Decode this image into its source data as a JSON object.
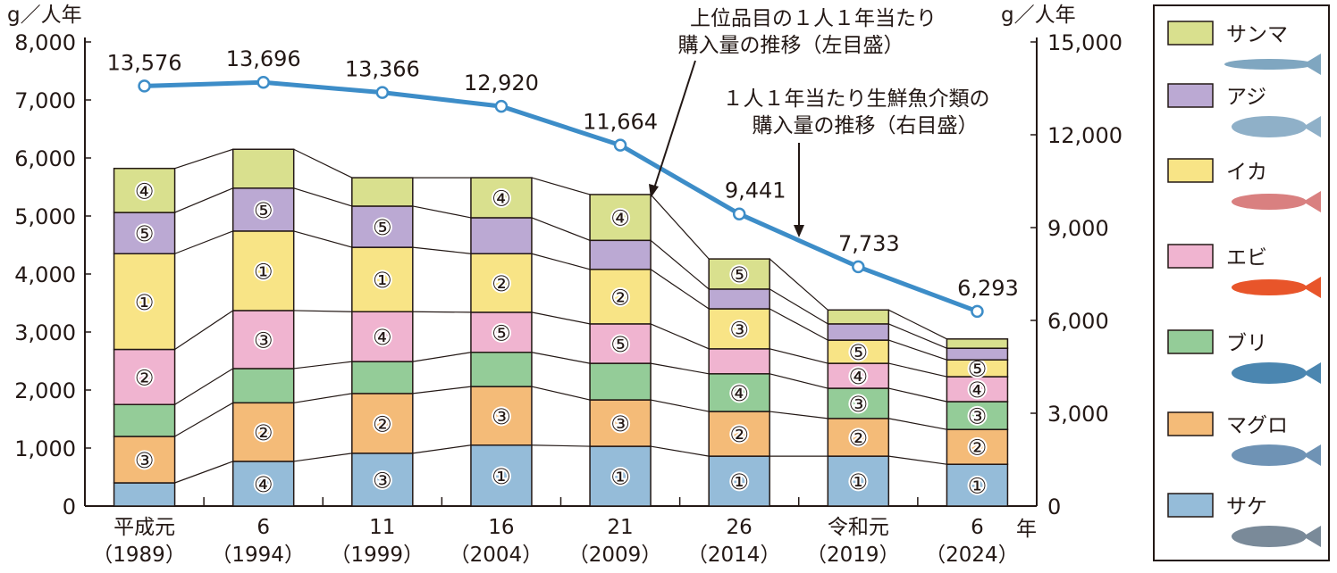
{
  "chart_data": {
    "type": "bar",
    "subtype": "stacked-bar-with-line",
    "left_axis": {
      "unit_label": "g／人年",
      "ylim": [
        0,
        8000
      ],
      "ticks": [
        "0",
        "1,000",
        "2,000",
        "3,000",
        "4,000",
        "5,000",
        "6,000",
        "7,000",
        "8,000"
      ]
    },
    "right_axis": {
      "unit_label": "g／人年",
      "ylim": [
        0,
        15000
      ],
      "ticks": [
        "0",
        "3,000",
        "6,000",
        "9,000",
        "12,000",
        "15,000"
      ]
    },
    "x_unit_label": "年",
    "categories": [
      {
        "era": "平成元",
        "year": "（1989）"
      },
      {
        "era": "6",
        "year": "（1994）"
      },
      {
        "era": "11",
        "year": "（1999）"
      },
      {
        "era": "16",
        "year": "（2004）"
      },
      {
        "era": "21",
        "year": "（2009）"
      },
      {
        "era": "26",
        "year": "（2014）"
      },
      {
        "era": "令和元",
        "year": "（2019）"
      },
      {
        "era": "6",
        "year": "（2024）"
      }
    ],
    "series": [
      {
        "name": "サケ",
        "color": "#95bcd9",
        "values": [
          400,
          770,
          910,
          1050,
          1030,
          860,
          860,
          720
        ],
        "ranks": [
          "",
          "④",
          "③",
          "①",
          "①",
          "①",
          "①",
          "①"
        ]
      },
      {
        "name": "マグロ",
        "color": "#f4bb78",
        "values": [
          800,
          1010,
          1030,
          1010,
          800,
          770,
          650,
          600
        ],
        "ranks": [
          "③",
          "②",
          "②",
          "③",
          "③",
          "②",
          "②",
          "②"
        ]
      },
      {
        "name": "ブリ",
        "color": "#94cc98",
        "values": [
          550,
          590,
          550,
          590,
          630,
          650,
          520,
          480
        ],
        "ranks": [
          "",
          "",
          "",
          "",
          "",
          "④",
          "③",
          "③"
        ]
      },
      {
        "name": "エビ",
        "color": "#f0b4d0",
        "values": [
          950,
          1000,
          860,
          690,
          680,
          430,
          430,
          430
        ],
        "ranks": [
          "②",
          "③",
          "④",
          "⑤",
          "⑤",
          "",
          "④",
          "④"
        ]
      },
      {
        "name": "イカ",
        "color": "#f8e486",
        "values": [
          1650,
          1370,
          1110,
          1010,
          940,
          690,
          400,
          290
        ],
        "ranks": [
          "①",
          "①",
          "①",
          "②",
          "②",
          "③",
          "⑤",
          "⑤"
        ]
      },
      {
        "name": "アジ",
        "color": "#bba9d3",
        "values": [
          710,
          740,
          710,
          620,
          500,
          340,
          280,
          200
        ],
        "ranks": [
          "⑤",
          "⑤",
          "⑤",
          "",
          "",
          "",
          "",
          ""
        ]
      },
      {
        "name": "サンマ",
        "color": "#d9e08e",
        "values": [
          760,
          670,
          490,
          690,
          790,
          520,
          240,
          160
        ],
        "ranks": [
          "④",
          "",
          "",
          "④",
          "④",
          "⑤",
          "",
          ""
        ]
      }
    ],
    "line": {
      "name": "１人１年当たり生鮮魚介類の購入量の推移（右目盛）",
      "color": "#3d8dc8",
      "values": [
        13576,
        13696,
        13366,
        12920,
        11664,
        9441,
        7733,
        6293
      ],
      "labels": [
        "13,576",
        "13,696",
        "13,366",
        "12,920",
        "11,664",
        "9,441",
        "7,733",
        "6,293"
      ]
    },
    "annotations": {
      "bars_line1": "上位品目の１人１年当たり",
      "bars_line2": "購入量の推移（左目盛）",
      "line_line1": "１人１年当たり生鮮魚介類の",
      "line_line2": "購入量の推移（右目盛）"
    },
    "legend": {
      "placement": "right",
      "order": [
        "サンマ",
        "アジ",
        "イカ",
        "エビ",
        "ブリ",
        "マグロ",
        "サケ"
      ]
    }
  }
}
